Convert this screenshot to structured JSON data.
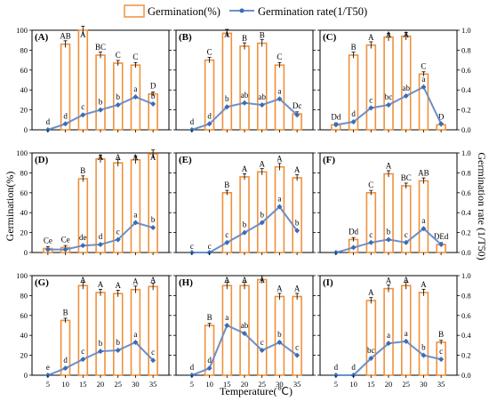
{
  "chart_data": {
    "type": "bar+line",
    "colors": {
      "bar_stroke": "#f0913c",
      "bar_fill": "#ffffff",
      "line": "#6d8fc8",
      "marker": "#3a6db5",
      "axis": "#000000"
    },
    "legend": {
      "position": "top",
      "bar_label": "Germination(%)",
      "line_label": "Germination rate(1/T50)"
    },
    "x_axis": {
      "label": "Temperature(℃)",
      "ticks": [
        "5",
        "10",
        "15",
        "20",
        "25",
        "30",
        "35"
      ]
    },
    "y_left": {
      "label": "Germination(%)",
      "ticks": [
        "0",
        "20",
        "40",
        "60",
        "80",
        "100"
      ],
      "range": [
        0,
        100
      ]
    },
    "y_right": {
      "label": "Germination rate (1/T50)",
      "ticks": [
        "0.0",
        "0.2",
        "0.4",
        "0.6",
        "0.8",
        "1.0"
      ],
      "range": [
        0,
        1
      ]
    },
    "temperatures": [
      5,
      10,
      15,
      20,
      25,
      30,
      35
    ],
    "panels": [
      {
        "label": "(A)",
        "germination": [
          0,
          86,
          100,
          75,
          67,
          65,
          36
        ],
        "bar_letters": [
          "",
          "AB",
          "A",
          "BC",
          "C",
          "C",
          "D"
        ],
        "rate": [
          0,
          0.06,
          0.15,
          0.2,
          0.25,
          0.33,
          0.26
        ],
        "rate_letters": [
          "d",
          "d",
          "c",
          "b",
          "b",
          "a",
          "b"
        ]
      },
      {
        "label": "(B)",
        "germination": [
          0,
          70,
          97,
          84,
          87,
          65,
          16
        ],
        "bar_letters": [
          "",
          "C",
          "A",
          "B",
          "B",
          "C",
          "Dc"
        ],
        "rate": [
          0,
          0.06,
          0.23,
          0.27,
          0.25,
          0.31,
          0.15
        ],
        "rate_letters": [
          "d",
          "d",
          "b",
          "ab",
          "ab",
          "a",
          ""
        ]
      },
      {
        "label": "(C)",
        "germination": [
          5,
          75,
          85,
          93,
          94,
          56,
          5
        ],
        "bar_letters": [
          "Dd",
          "B",
          "A",
          "A",
          "A",
          "C",
          "D"
        ],
        "rate": [
          0.05,
          0.08,
          0.22,
          0.25,
          0.34,
          0.43,
          0.06
        ],
        "rate_letters": [
          "",
          "d",
          "c",
          "bc",
          "ab",
          "a",
          ""
        ]
      },
      {
        "label": "(D)",
        "germination": [
          4,
          5,
          74,
          94,
          90,
          93,
          99
        ],
        "bar_letters": [
          "Ce",
          "Ce",
          "B",
          "A",
          "A",
          "A",
          "A"
        ],
        "rate": [
          0.03,
          0.03,
          0.07,
          0.08,
          0.13,
          0.3,
          0.25
        ],
        "rate_letters": [
          "",
          "",
          "de",
          "d",
          "c",
          "a",
          "b"
        ]
      },
      {
        "label": "(E)",
        "germination": [
          0,
          0,
          60,
          76,
          81,
          86,
          75
        ],
        "bar_letters": [
          "c",
          "c",
          "B",
          "A",
          "A",
          "A",
          "A"
        ],
        "rate": [
          0,
          0,
          0.1,
          0.2,
          0.3,
          0.46,
          0.22
        ],
        "rate_letters": [
          "",
          "",
          "c",
          "b",
          "b",
          "a",
          "b"
        ]
      },
      {
        "label": "(F)",
        "germination": [
          0,
          13,
          60,
          79,
          67,
          72,
          8
        ],
        "bar_letters": [
          "",
          "Dd",
          "C",
          "A",
          "BC",
          "AB",
          "DEd"
        ],
        "rate": [
          0,
          0.05,
          0.1,
          0.13,
          0.1,
          0.24,
          0.08
        ],
        "rate_letters": [
          "",
          "",
          "c",
          "b",
          "c",
          "a",
          ""
        ]
      },
      {
        "label": "(G)",
        "germination": [
          0,
          55,
          90,
          83,
          82,
          86,
          89
        ],
        "bar_letters": [
          "",
          "B",
          "A",
          "A",
          "A",
          "A",
          "A"
        ],
        "rate": [
          0,
          0.07,
          0.16,
          0.24,
          0.25,
          0.33,
          0.15
        ],
        "rate_letters": [
          "e",
          "d",
          "c",
          "b",
          "b",
          "a",
          "c"
        ]
      },
      {
        "label": "(H)",
        "germination": [
          0,
          50,
          90,
          90,
          96,
          79,
          79
        ],
        "bar_letters": [
          "",
          "B",
          "A",
          "A",
          "A",
          "A",
          "A"
        ],
        "rate": [
          0,
          0.07,
          0.5,
          0.42,
          0.25,
          0.33,
          0.2
        ],
        "rate_letters": [
          "d",
          "d",
          "a",
          "ab",
          "c",
          "b",
          "c"
        ]
      },
      {
        "label": "(I)",
        "germination": [
          0,
          0,
          75,
          87,
          90,
          83,
          33
        ],
        "bar_letters": [
          "",
          "",
          "A",
          "A",
          "A",
          "A",
          "B"
        ],
        "rate": [
          0,
          0,
          0.17,
          0.32,
          0.34,
          0.2,
          0.16
        ],
        "rate_letters": [
          "d",
          "d",
          "bc",
          "a",
          "a",
          "b",
          "c"
        ]
      }
    ]
  }
}
